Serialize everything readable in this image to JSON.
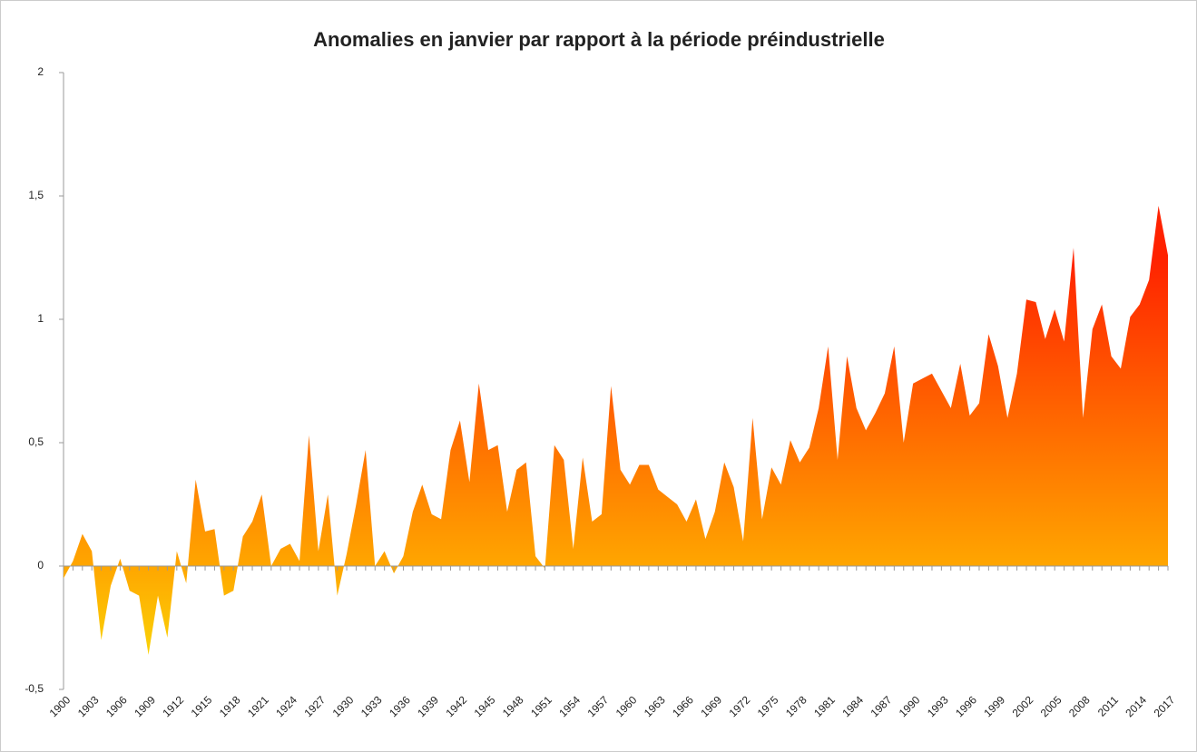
{
  "chart_data": {
    "type": "area",
    "title": "Anomalies en janvier par rapport à la période préindustrielle",
    "categories": [
      "1900",
      null,
      null,
      "1903",
      null,
      null,
      "1906",
      null,
      null,
      "1909",
      null,
      null,
      "1912",
      null,
      null,
      "1915",
      null,
      null,
      "1918",
      null,
      null,
      "1921",
      null,
      null,
      "1924",
      null,
      null,
      "1927",
      null,
      null,
      "1930",
      null,
      null,
      "1933",
      null,
      null,
      "1936",
      null,
      null,
      "1939",
      null,
      null,
      "1942",
      null,
      null,
      "1945",
      null,
      null,
      "1948",
      null,
      null,
      "1951",
      null,
      null,
      "1954",
      null,
      null,
      "1957",
      null,
      null,
      "1960",
      null,
      null,
      "1963",
      null,
      null,
      "1966",
      null,
      null,
      "1969",
      null,
      null,
      "1972",
      null,
      null,
      "1975",
      null,
      null,
      "1978",
      null,
      null,
      "1981",
      null,
      null,
      "1984",
      null,
      null,
      "1987",
      null,
      null,
      "1990",
      null,
      null,
      "1993",
      null,
      null,
      "1996",
      null,
      null,
      "1999",
      null,
      null,
      "2002",
      null,
      null,
      "2005",
      null,
      null,
      "2008",
      null,
      null,
      "2011",
      null,
      null,
      "2014",
      null,
      null,
      "2017"
    ],
    "values": [
      -0.05,
      0.02,
      0.13,
      0.06,
      -0.3,
      -0.08,
      0.03,
      -0.1,
      -0.12,
      -0.36,
      -0.12,
      -0.29,
      0.06,
      -0.07,
      0.35,
      0.14,
      0.15,
      -0.12,
      -0.1,
      0.12,
      0.18,
      0.29,
      0.0,
      0.07,
      0.09,
      0.02,
      0.53,
      0.06,
      0.29,
      -0.12,
      0.05,
      0.25,
      0.47,
      0.0,
      0.06,
      -0.03,
      0.04,
      0.22,
      0.33,
      0.21,
      0.19,
      0.47,
      0.59,
      0.34,
      0.74,
      0.47,
      0.49,
      0.22,
      0.39,
      0.42,
      0.04,
      -0.01,
      0.49,
      0.43,
      0.07,
      0.44,
      0.18,
      0.21,
      0.73,
      0.39,
      0.33,
      0.41,
      0.41,
      0.31,
      0.28,
      0.25,
      0.18,
      0.27,
      0.11,
      0.22,
      0.42,
      0.32,
      0.1,
      0.6,
      0.19,
      0.4,
      0.33,
      0.51,
      0.42,
      0.48,
      0.64,
      0.89,
      0.43,
      0.85,
      0.64,
      0.55,
      0.62,
      0.7,
      0.89,
      0.5,
      0.74,
      0.76,
      0.78,
      0.71,
      0.64,
      0.82,
      0.61,
      0.66,
      0.94,
      0.81,
      0.6,
      0.78,
      1.08,
      1.07,
      0.92,
      1.04,
      0.91,
      1.29,
      0.6,
      0.96,
      1.06,
      0.85,
      0.8,
      1.01,
      1.06,
      1.16,
      1.46,
      1.26
    ],
    "colors": [
      "#f8e40a",
      "#ffa600",
      "#ff2200"
    ],
    "ylim": [
      -0.5,
      2
    ],
    "yticks": [
      {
        "value": -0.5,
        "label": "-0,5"
      },
      0,
      {
        "value": 0.5,
        "label": "0,5"
      },
      1,
      {
        "value": 1.5,
        "label": "1,5"
      },
      2
    ]
  }
}
